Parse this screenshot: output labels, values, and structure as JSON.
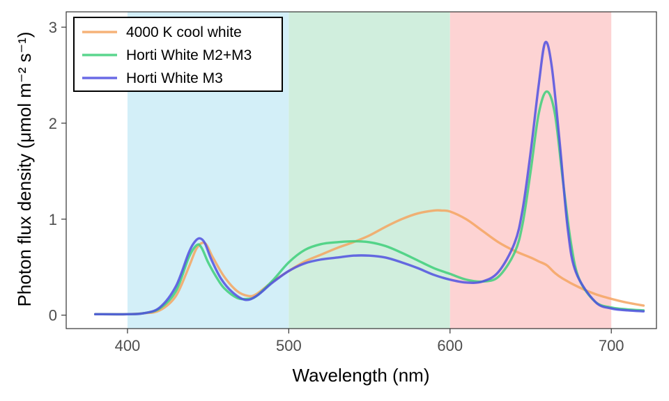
{
  "chart_data": {
    "type": "line",
    "title": "",
    "xlabel": "Wavelength (nm)",
    "ylabel": "Photon flux density",
    "ylabel_units": "(μmol m⁻² s⁻¹)",
    "xlim": [
      362,
      728
    ],
    "ylim": [
      -0.14,
      3.16
    ],
    "xticks": [
      400,
      500,
      600,
      700
    ],
    "yticks": [
      0,
      1,
      2,
      3
    ],
    "grid": false,
    "legend_position": "top-left",
    "bands": [
      {
        "from": 400,
        "to": 500,
        "color": "#d3eff8"
      },
      {
        "from": 500,
        "to": 600,
        "color": "#d0eedd"
      },
      {
        "from": 600,
        "to": 700,
        "color": "#fdd3d3"
      }
    ],
    "series": [
      {
        "name": "4000 K cool white",
        "color": "#f5a460",
        "x": [
          380,
          400,
          410,
          420,
          430,
          438,
          443,
          448,
          453,
          460,
          468,
          475,
          480,
          490,
          500,
          510,
          520,
          530,
          540,
          550,
          560,
          570,
          580,
          590,
          595,
          600,
          610,
          620,
          630,
          640,
          650,
          655,
          660,
          665,
          670,
          680,
          690,
          700,
          710,
          720
        ],
        "y": [
          0.01,
          0.01,
          0.02,
          0.05,
          0.2,
          0.5,
          0.7,
          0.75,
          0.6,
          0.4,
          0.25,
          0.2,
          0.22,
          0.35,
          0.46,
          0.56,
          0.63,
          0.7,
          0.76,
          0.83,
          0.92,
          1.0,
          1.06,
          1.09,
          1.09,
          1.08,
          1.0,
          0.88,
          0.76,
          0.67,
          0.6,
          0.56,
          0.52,
          0.44,
          0.38,
          0.29,
          0.22,
          0.17,
          0.13,
          0.1
        ]
      },
      {
        "name": "Horti White M2+M3",
        "color": "#3ecf7a",
        "x": [
          380,
          400,
          410,
          420,
          430,
          438,
          443,
          446,
          450,
          455,
          460,
          468,
          475,
          480,
          490,
          500,
          510,
          520,
          530,
          540,
          550,
          560,
          570,
          580,
          590,
          600,
          610,
          620,
          630,
          640,
          645,
          650,
          655,
          660,
          665,
          670,
          675,
          680,
          690,
          700,
          710,
          720
        ],
        "y": [
          0.01,
          0.01,
          0.02,
          0.07,
          0.25,
          0.6,
          0.73,
          0.7,
          0.55,
          0.4,
          0.28,
          0.18,
          0.17,
          0.2,
          0.36,
          0.55,
          0.68,
          0.74,
          0.76,
          0.77,
          0.76,
          0.72,
          0.65,
          0.57,
          0.49,
          0.43,
          0.37,
          0.35,
          0.4,
          0.65,
          0.95,
          1.5,
          2.1,
          2.33,
          2.1,
          1.4,
          0.75,
          0.38,
          0.14,
          0.08,
          0.06,
          0.05
        ]
      },
      {
        "name": "Horti White M3",
        "color": "#5050e0",
        "x": [
          380,
          400,
          410,
          420,
          430,
          438,
          442,
          445,
          448,
          452,
          458,
          465,
          473,
          480,
          490,
          500,
          510,
          520,
          530,
          540,
          550,
          560,
          570,
          580,
          590,
          600,
          610,
          620,
          630,
          640,
          645,
          650,
          655,
          659,
          663,
          668,
          673,
          678,
          690,
          700,
          710,
          720
        ],
        "y": [
          0.01,
          0.01,
          0.02,
          0.08,
          0.3,
          0.65,
          0.77,
          0.8,
          0.75,
          0.58,
          0.38,
          0.24,
          0.16,
          0.2,
          0.34,
          0.46,
          0.54,
          0.58,
          0.6,
          0.62,
          0.62,
          0.6,
          0.55,
          0.49,
          0.42,
          0.37,
          0.34,
          0.35,
          0.45,
          0.75,
          1.1,
          1.7,
          2.4,
          2.84,
          2.6,
          1.8,
          0.9,
          0.45,
          0.14,
          0.07,
          0.05,
          0.04
        ]
      }
    ]
  }
}
